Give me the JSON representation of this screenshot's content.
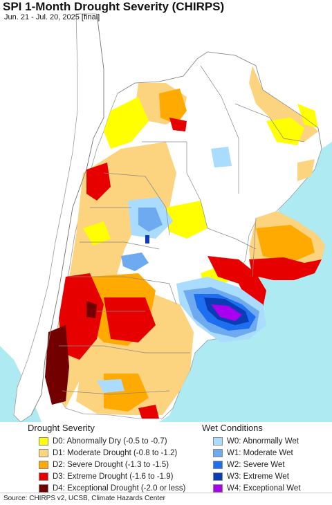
{
  "map": {
    "title": "SPI 1-Month Drought Severity (CHIRPS)",
    "subtitle": "Jun. 21 - Jul. 20, 2025 [final]"
  },
  "legend": {
    "drought": {
      "heading": "Drought Severity",
      "items": [
        {
          "label": "D0: Abnormally Dry (-0.5 to -0.7)",
          "color": "#ffff00"
        },
        {
          "label": "D1: Moderate Drought (-0.8 to -1.2)",
          "color": "#fcd37f"
        },
        {
          "label": "D2: Severe Drought (-1.3 to -1.5)",
          "color": "#ffaa00"
        },
        {
          "label": "D3: Extreme Drought (-1.6 to -1.9)",
          "color": "#e60000"
        },
        {
          "label": "D4: Exceptional Drought (-2.0 or less)",
          "color": "#730000"
        }
      ]
    },
    "wet": {
      "heading": "Wet Conditions",
      "items": [
        {
          "label": "W0: Abnormally Wet",
          "color": "#aadcff"
        },
        {
          "label": "W1: Moderate Wet",
          "color": "#6eaaf0"
        },
        {
          "label": "W2: Severe Wet",
          "color": "#1e6ef0"
        },
        {
          "label": "W3: Extreme Wet",
          "color": "#0a3cb4"
        },
        {
          "label": "W4: Exceptional Wet",
          "color": "#aa00f0"
        }
      ]
    }
  },
  "footer": {
    "source": "Source: CHIRPS v2, UCSB, Climate Hazards Center"
  },
  "colors": {
    "ocean": "#aeeaf2",
    "outside_land": "#ffffff",
    "no_drought": "#ffffff",
    "borders": "#888888"
  }
}
